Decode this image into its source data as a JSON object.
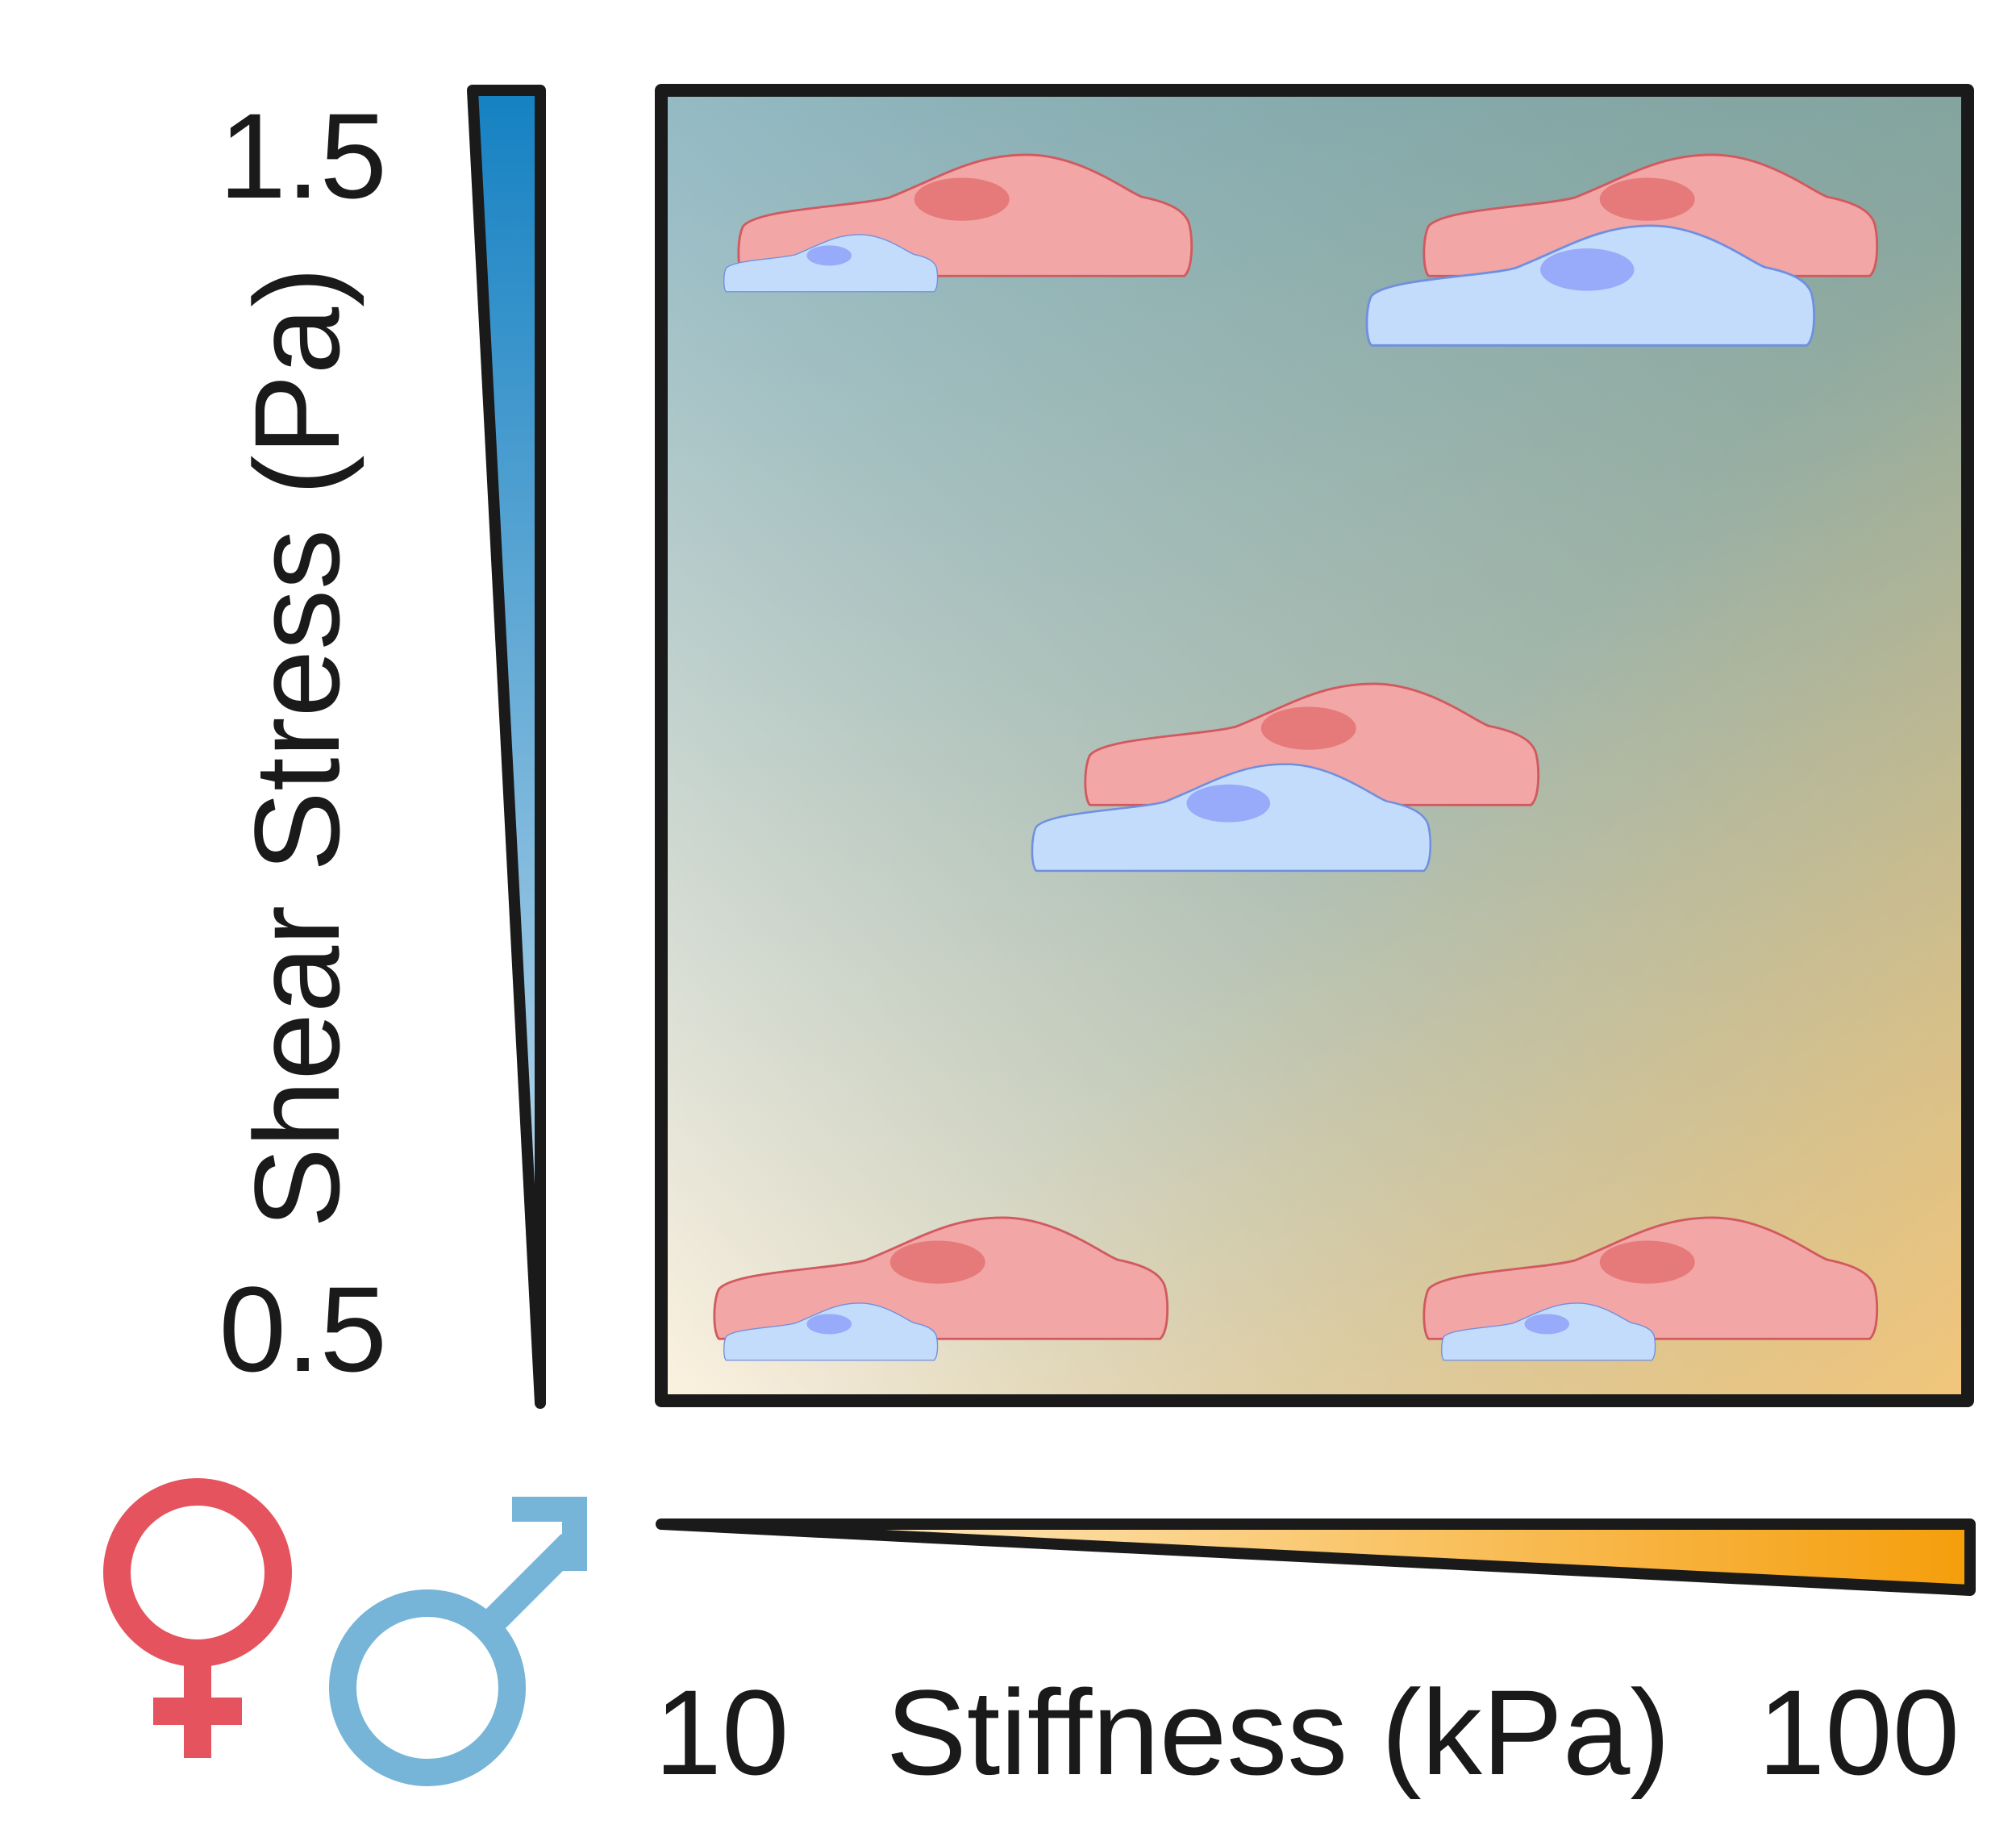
{
  "y_axis": {
    "label": "Shear Stress (Pa)",
    "max_label": "1.5",
    "min_label": "0.5",
    "gradient_color_top": "#1581c2",
    "gradient_color_bottom": "#cfe3f1"
  },
  "x_axis": {
    "label": "Stiffness (kPa)",
    "min_label": "10",
    "max_label": "100",
    "gradient_color_right": "#f59e0b",
    "gradient_color_left": "#fff4dc"
  },
  "legend": {
    "female_icon": "female-symbol-icon",
    "male_icon": "male-symbol-icon",
    "female_color": "#e4535e",
    "male_color": "#76b4d8"
  },
  "conditions": [
    {
      "id": "low-stiffness-high-shear",
      "stiffness": "10",
      "shear_stress": "1.5",
      "female_cell_size": "large",
      "male_cell_size": "small"
    },
    {
      "id": "high-stiffness-high-shear",
      "stiffness": "100",
      "shear_stress": "1.5",
      "female_cell_size": "large",
      "male_cell_size": "large"
    },
    {
      "id": "mid-stiffness-mid-shear",
      "stiffness": "mid",
      "shear_stress": "mid",
      "female_cell_size": "large",
      "male_cell_size": "large"
    },
    {
      "id": "low-stiffness-low-shear",
      "stiffness": "10",
      "shear_stress": "0.5",
      "female_cell_size": "large",
      "male_cell_size": "small"
    },
    {
      "id": "high-stiffness-low-shear",
      "stiffness": "100",
      "shear_stress": "0.5",
      "female_cell_size": "large",
      "male_cell_size": "small"
    }
  ],
  "colors": {
    "female_cell_fill": "#f2a6a6",
    "female_cell_stroke": "#d05a5f",
    "female_nucleus": "#e67a7a",
    "male_cell_fill": "#c4dcfb",
    "male_cell_stroke": "#6f8fe0",
    "male_nucleus": "#98abfa"
  }
}
